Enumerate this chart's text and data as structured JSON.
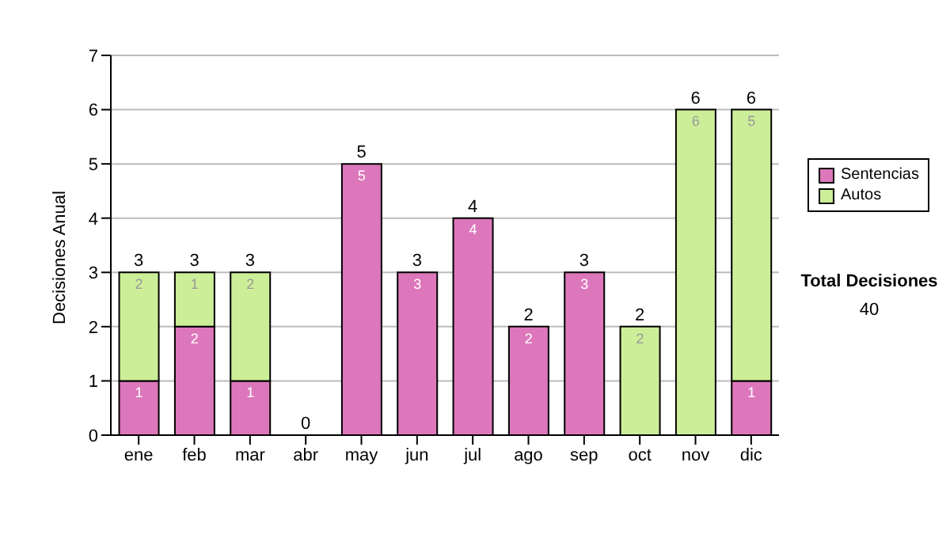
{
  "chart_data": {
    "type": "bar",
    "stacked": true,
    "ylabel": "Decisiones Anual",
    "categories": [
      "ene",
      "feb",
      "mar",
      "abr",
      "may",
      "jun",
      "jul",
      "ago",
      "sep",
      "oct",
      "nov",
      "dic"
    ],
    "series": [
      {
        "name": "Sentencias",
        "color": "#dd77bb",
        "values": [
          1,
          2,
          1,
          0,
          5,
          3,
          4,
          2,
          3,
          0,
          0,
          1
        ],
        "value_labels": [
          "1",
          "2",
          "1",
          null,
          "5",
          "3",
          "4",
          "2",
          "3",
          null,
          null,
          "1"
        ]
      },
      {
        "name": "Autos",
        "color": "#ccee99",
        "values": [
          2,
          1,
          2,
          0,
          0,
          0,
          0,
          0,
          0,
          2,
          6,
          5
        ],
        "value_labels": [
          "2",
          "1",
          "2",
          null,
          null,
          null,
          null,
          null,
          null,
          "2",
          "6",
          "5"
        ]
      }
    ],
    "totals": [
      "3",
      "3",
      "3",
      "0",
      "5",
      "3",
      "4",
      "2",
      "3",
      "2",
      "6",
      "6"
    ],
    "ylim": [
      0,
      7
    ],
    "yticks": [
      0,
      1,
      2,
      3,
      4,
      5,
      6,
      7
    ],
    "grid": "y",
    "legend": "right",
    "annotations": [
      "Total Decisiones",
      "40"
    ]
  }
}
